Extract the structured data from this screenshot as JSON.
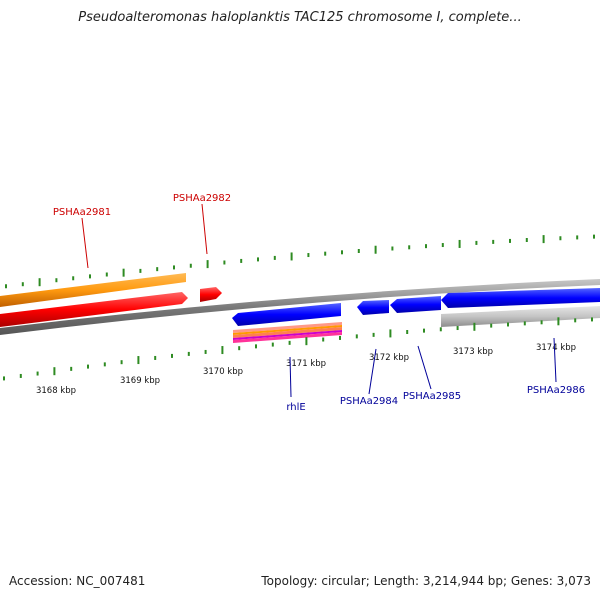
{
  "title": "Pseudoalteromonas haloplanktis TAC125 chromosome I, complete...",
  "footer": {
    "accession": "Accession: NC_007481",
    "stats": "Topology: circular; Length: 3,214,944 bp; Genes: 3,073"
  },
  "ticks": [
    {
      "label": "3168 kbp"
    },
    {
      "label": "3169 kbp"
    },
    {
      "label": "3170 kbp"
    },
    {
      "label": "3171 kbp"
    },
    {
      "label": "3172 kbp"
    },
    {
      "label": "3173 kbp"
    },
    {
      "label": "3174 kbp"
    }
  ],
  "genes": [
    {
      "label": "PSHAa2981",
      "color": "#cc0000"
    },
    {
      "label": "PSHAa2982",
      "color": "#cc0000"
    },
    {
      "label": "rhlE",
      "color": "#000099"
    },
    {
      "label": "PSHAa2984",
      "color": "#000099"
    },
    {
      "label": "PSHAa2985",
      "color": "#000099"
    },
    {
      "label": "PSHAa2986",
      "color": "#000099"
    }
  ],
  "colors": {
    "tick_green": "#2e8b22",
    "backbone": "#8c8c8c",
    "forward_cds": "#ff0000",
    "reverse_cds": "#0000ff",
    "forward_gene": "#ff9900",
    "reverse_gene": "#bdbdbd"
  }
}
